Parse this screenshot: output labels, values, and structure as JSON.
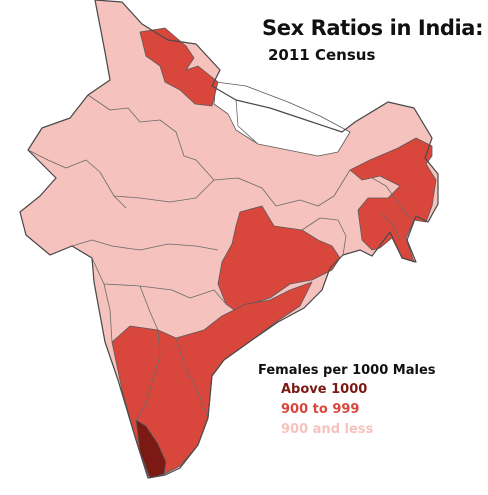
{
  "title": "Sex Ratios in India:",
  "subtitle": "2011 Census",
  "legend": {
    "heading": "Females per 1000 Males",
    "items": [
      {
        "label": "Above 1000",
        "color": "#7b1a14"
      },
      {
        "label": "900 to 999",
        "color": "#d9473c"
      },
      {
        "label": "900 and less",
        "color": "#f6c2bd"
      }
    ]
  },
  "colors": {
    "above_1000": "#7b1a14",
    "range_900_999": "#d9473c",
    "below_900": "#f6c2bd",
    "no_data": "#ffffff"
  }
}
